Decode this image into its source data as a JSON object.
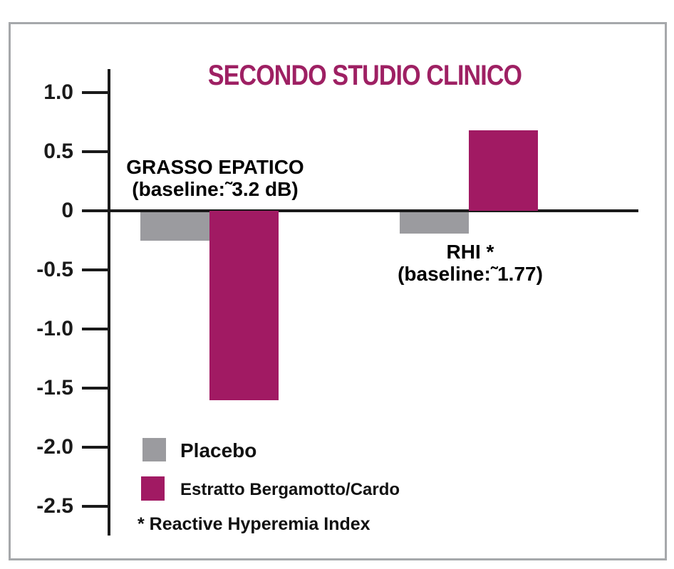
{
  "chart_data": {
    "type": "bar",
    "title": "SECONDO STUDIO CLINICO",
    "categories": [
      "GRASSO EPATICO (baseline:~3.2 dB)",
      "RHI* (baseline:~1.77)"
    ],
    "series": [
      {
        "name": "Placebo",
        "color": "#9b9b9f",
        "values": [
          -0.25,
          -0.19
        ]
      },
      {
        "name": "Estratto Bergamotto/Cardo",
        "color": "#a11a63",
        "values": [
          -1.6,
          0.68
        ]
      }
    ],
    "y_ticks": [
      {
        "label": "1.0",
        "value": 1.0
      },
      {
        "label": "0.5",
        "value": 0.5
      },
      {
        "label": "0",
        "value": 0.0
      },
      {
        "label": "-0.5",
        "value": -0.5
      },
      {
        "label": "-1.0",
        "value": -1.0
      },
      {
        "label": "-1.5",
        "value": -1.5
      },
      {
        "label": "-2.0",
        "value": -2.0
      },
      {
        "label": "-2.5",
        "value": -2.5
      }
    ],
    "ylim": [
      -2.75,
      1.2
    ],
    "xlabel": "",
    "ylabel": "",
    "grid": false,
    "zero_line": true,
    "legend_position": "bottom-left"
  },
  "annotations": {
    "group1_line1": "GRASSO EPATICO",
    "group1_line2": "(baseline:˜3.2 dB)",
    "group2_line1": "RHI *",
    "group2_line2": "(baseline:˜1.77)"
  },
  "legend": {
    "placebo_label": "Placebo",
    "estratto_label": "Estratto Bergamotto/Cardo"
  },
  "footnote": "* Reactive Hyperemia Index",
  "colors": {
    "magenta": "#a11a63",
    "gray": "#9b9b9f",
    "title": "#9e2063",
    "axis": "#1a1a1a",
    "frame_border": "#a6a8ab"
  }
}
